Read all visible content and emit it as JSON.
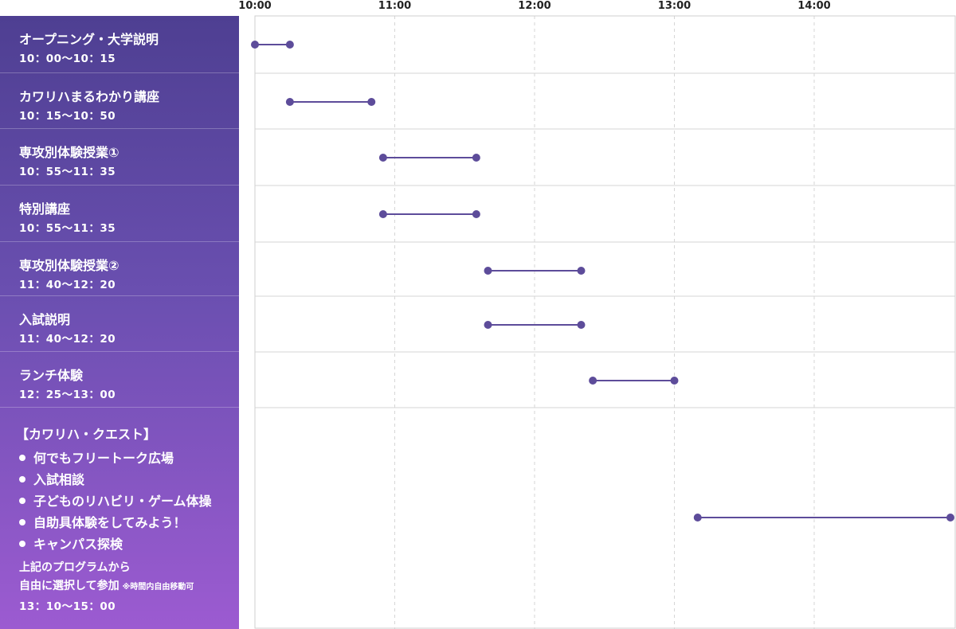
{
  "chart_data": {
    "type": "gantt",
    "axis_ticks": [
      "10:00",
      "11:00",
      "12:00",
      "13:00",
      "14:00"
    ],
    "rows": [
      {
        "title": "オープニング・大学説明",
        "time": "10：00〜10：15",
        "start": "10:00",
        "end": "10:15"
      },
      {
        "title": "カワリハまるわかり講座",
        "time": "10：15〜10：50",
        "start": "10:15",
        "end": "10:50"
      },
      {
        "title": "専攻別体験授業①",
        "time": "10：55〜11：35",
        "start": "10:55",
        "end": "11:35"
      },
      {
        "title": "特別講座",
        "time": "10：55〜11：35",
        "start": "10:55",
        "end": "11:35"
      },
      {
        "title": "専攻別体験授業②",
        "time": "11：40〜12：20",
        "start": "11:40",
        "end": "12:20"
      },
      {
        "title": "入試説明",
        "time": "11：40〜12：20",
        "start": "11:40",
        "end": "12:20"
      },
      {
        "title": "ランチ体験",
        "time": "12：25〜13：00",
        "start": "12:25",
        "end": "13:00"
      }
    ],
    "quest": {
      "title": "【カワリハ・クエスト】",
      "items": [
        "何でもフリートーク広場",
        "入試相談",
        "子どものリハビリ・ゲーム体操",
        "自助具体験をしてみよう！",
        "キャンパス探検"
      ],
      "note_line1": "上記のプログラムから",
      "note_line2": "自由に選択して参加",
      "note_small": "※時間内自由移動可",
      "time": "13：10〜15：00",
      "start": "13:10",
      "end": "15:00"
    },
    "bar_color": "#5d4c9a",
    "grid": true
  }
}
